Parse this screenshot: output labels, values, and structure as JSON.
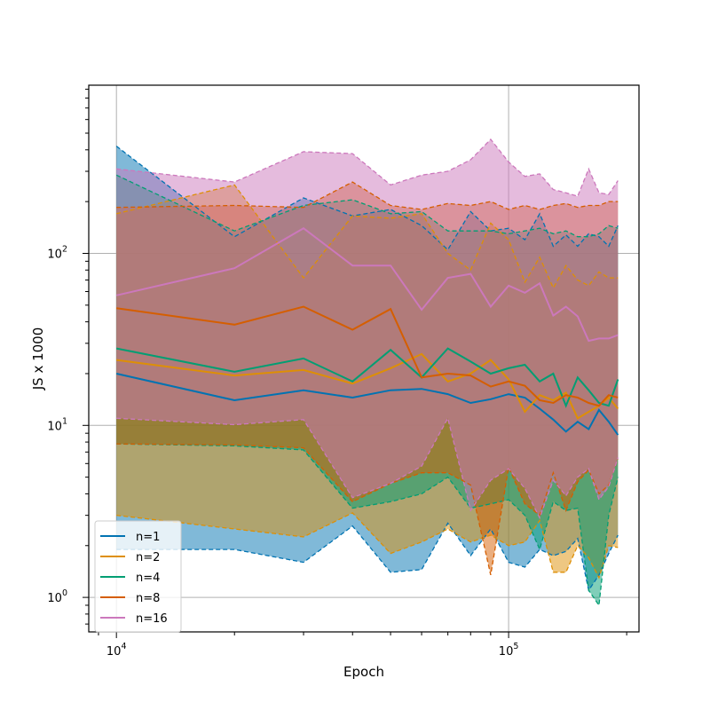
{
  "chart_data": {
    "type": "line",
    "title": "",
    "xlabel": "Epoch",
    "ylabel": "JS x 1000",
    "xscale": "log",
    "yscale": "log",
    "xlim": [
      8500,
      215000
    ],
    "ylim": [
      0.63,
      950
    ],
    "grid": true,
    "legend_position": "lower-left",
    "x_ticks": [
      {
        "value": 10000,
        "base": "10",
        "exp": "4"
      },
      {
        "value": 100000,
        "base": "10",
        "exp": "5"
      }
    ],
    "y_ticks": [
      {
        "value": 1,
        "label": "10",
        "exp": "0"
      },
      {
        "value": 10,
        "label": "10",
        "exp": "1"
      },
      {
        "value": 100,
        "label": "10",
        "exp": "2"
      }
    ],
    "x": [
      10000,
      20000,
      30000,
      40000,
      50000,
      60000,
      70000,
      80000,
      90000,
      100000,
      110000,
      120000,
      130000,
      140000,
      150000,
      160000,
      170000,
      180000,
      190000
    ],
    "series": [
      {
        "name": "n=1",
        "color": "#0173b2",
        "mean": [
          20,
          14,
          16,
          14.5,
          16,
          16.3,
          15.2,
          13.5,
          14.2,
          15.2,
          14.5,
          12.5,
          10.8,
          9.2,
          10.5,
          9.5,
          12.3,
          10.5,
          8.8
        ],
        "upper": [
          420,
          125,
          210,
          165,
          180,
          145,
          105,
          175,
          135,
          140,
          120,
          170,
          110,
          128,
          110,
          130,
          125,
          110,
          145
        ],
        "lower": [
          1.9,
          1.9,
          1.6,
          2.6,
          1.4,
          1.45,
          2.7,
          1.75,
          2.5,
          1.6,
          1.5,
          1.9,
          1.75,
          1.85,
          2.2,
          1.1,
          1.35,
          1.8,
          2.3
        ]
      },
      {
        "name": "n=2",
        "color": "#de8f05",
        "mean": [
          24,
          19.5,
          21,
          17.5,
          21.5,
          26,
          18,
          20,
          24,
          18.5,
          12,
          15,
          14,
          15.5,
          11,
          12,
          13,
          14.5,
          12.5
        ],
        "upper": [
          170,
          250,
          72,
          165,
          160,
          170,
          100,
          80,
          150,
          120,
          68,
          95,
          63,
          85,
          70,
          65,
          78,
          72,
          72
        ],
        "lower": [
          3.0,
          2.5,
          2.25,
          3.1,
          1.8,
          2.1,
          2.5,
          2.1,
          2.3,
          2.0,
          2.1,
          2.8,
          1.4,
          1.4,
          2.0,
          1.7,
          1.3,
          2.0,
          1.95
        ]
      },
      {
        "name": "n=4",
        "color": "#029e73",
        "mean": [
          28,
          20.5,
          24.5,
          18,
          27.5,
          19,
          28,
          23.5,
          20,
          21.5,
          22.5,
          18,
          20,
          13,
          19,
          16,
          13.5,
          13,
          18.5
        ],
        "upper": [
          285,
          135,
          190,
          205,
          170,
          175,
          135,
          135,
          135,
          130,
          135,
          140,
          130,
          135,
          125,
          125,
          130,
          145,
          140
        ],
        "lower": [
          7.8,
          7.6,
          7.2,
          3.3,
          3.6,
          4.0,
          5.0,
          3.3,
          3.5,
          3.7,
          3.0,
          1.9,
          3.6,
          3.2,
          3.3,
          1.1,
          0.9,
          3.0,
          5.0
        ]
      },
      {
        "name": "n=8",
        "color": "#d55e00",
        "mean": [
          48,
          38.5,
          49,
          36,
          47.5,
          19,
          20,
          19.5,
          16.8,
          18,
          17,
          14,
          13.5,
          15,
          14.5,
          13.5,
          13,
          15,
          14.5
        ],
        "upper": [
          185,
          190,
          185,
          260,
          190,
          180,
          195,
          190,
          200,
          180,
          190,
          180,
          190,
          195,
          185,
          190,
          190,
          200,
          200
        ],
        "lower": [
          7.8,
          7.7,
          7.4,
          3.6,
          4.6,
          5.3,
          5.3,
          4.5,
          1.35,
          5.7,
          3.5,
          3.0,
          5.3,
          3.2,
          4.7,
          5.5,
          4.0,
          4.5,
          6.4
        ]
      },
      {
        "name": "n=16",
        "color": "#cc78bc",
        "mean": [
          57,
          82,
          140,
          85,
          85,
          47,
          72,
          76,
          49,
          65,
          59,
          67,
          43.5,
          49,
          43,
          31,
          32,
          32,
          33.5
        ],
        "upper": [
          310,
          260,
          390,
          380,
          250,
          285,
          300,
          350,
          460,
          340,
          280,
          290,
          235,
          225,
          215,
          310,
          225,
          220,
          265
        ],
        "lower": [
          11,
          10.1,
          10.8,
          3.8,
          4.6,
          5.8,
          11,
          3.2,
          4.8,
          5.6,
          4.3,
          2.9,
          4.8,
          3.9,
          5.0,
          5.6,
          3.7,
          4.4,
          6.5
        ]
      }
    ]
  }
}
